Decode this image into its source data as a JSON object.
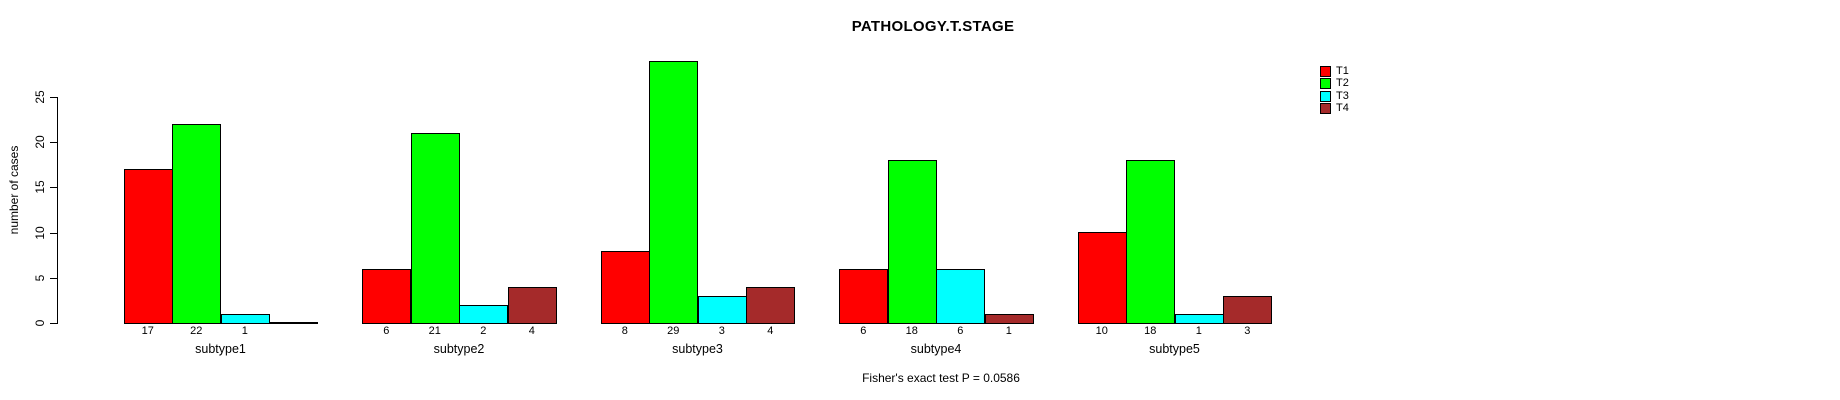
{
  "chart_data": {
    "type": "bar",
    "grouped": true,
    "title": "PATHOLOGY.T.STAGE",
    "xlabel": "",
    "ylabel": "number of cases",
    "categories": [
      "subtype1",
      "subtype2",
      "subtype3",
      "subtype4",
      "subtype5"
    ],
    "series": [
      {
        "name": "T1",
        "color": "#FF0000",
        "values": [
          17,
          6,
          8,
          6,
          10
        ]
      },
      {
        "name": "T2",
        "color": "#00FF00",
        "values": [
          22,
          21,
          29,
          18,
          18
        ]
      },
      {
        "name": "T3",
        "color": "#00FFFF",
        "values": [
          1,
          2,
          3,
          6,
          1
        ]
      },
      {
        "name": "T4",
        "color": "#A52A2A",
        "values": [
          0,
          4,
          4,
          1,
          3
        ]
      }
    ],
    "bar_value_labels_visible": true,
    "zero_values_unlabeled": true,
    "yticks": [
      0,
      5,
      10,
      15,
      20,
      25
    ],
    "ylim": [
      0,
      29
    ],
    "grid": false,
    "legend_position": "top-right",
    "legend_labels": [
      "T1",
      "T2",
      "T3",
      "T4"
    ],
    "annotation": "Fisher's exact test P = 0.0586"
  },
  "colors": {
    "background": "#FFFFFF",
    "axis": "#000000",
    "text": "#000000"
  }
}
